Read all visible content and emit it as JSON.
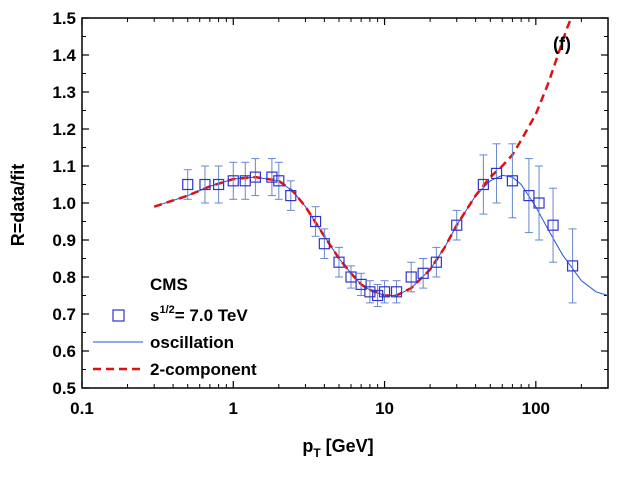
{
  "chart_data": {
    "type": "scatter",
    "panel_label": "(f)",
    "xlabel": "p",
    "xlabel_sub": "T",
    "xlabel_unit": " [GeV]",
    "ylabel": "R=data/fit",
    "xscale": "log",
    "xlim": [
      0.1,
      300
    ],
    "ylim": [
      0.5,
      1.5
    ],
    "x_ticks": [
      0.1,
      1,
      10,
      100
    ],
    "x_tick_labels": [
      "0.1",
      "1",
      "10",
      "100"
    ],
    "y_ticks": [
      0.5,
      0.6,
      0.7,
      0.8,
      0.9,
      1.0,
      1.1,
      1.2,
      1.3,
      1.4,
      1.5
    ],
    "y_tick_labels": [
      "0.5",
      "0.6",
      "0.7",
      "0.8",
      "0.9",
      "1.0",
      "1.1",
      "1.2",
      "1.3",
      "1.4",
      "1.5"
    ],
    "legend": {
      "title": "CMS",
      "data_label_prefix": "s",
      "data_label_sup": "1/2",
      "data_label_suffix": "= 7.0 TeV",
      "oscillation_label": "oscillation",
      "two_component_label": "2-component",
      "position": "bottom-left"
    },
    "colors": {
      "data": "#3333cc",
      "oscillation": "#2255dd",
      "two_component": "#dd1111",
      "error": "#6688cc"
    },
    "series": [
      {
        "name": "s^1/2 = 7.0 TeV",
        "kind": "points",
        "x": [
          0.5,
          0.65,
          0.8,
          1.0,
          1.2,
          1.4,
          1.8,
          2.0,
          2.4,
          3.5,
          4.0,
          5.0,
          6.0,
          7.0,
          8.0,
          9.0,
          10.0,
          12.0,
          15.0,
          18.0,
          22.0,
          30.0,
          45.0,
          55.0,
          70.0,
          90.0,
          105.0,
          130.0,
          175.0
        ],
        "y": [
          1.05,
          1.05,
          1.05,
          1.06,
          1.06,
          1.07,
          1.07,
          1.06,
          1.02,
          0.95,
          0.89,
          0.84,
          0.8,
          0.78,
          0.76,
          0.75,
          0.76,
          0.76,
          0.8,
          0.81,
          0.84,
          0.94,
          1.05,
          1.08,
          1.06,
          1.02,
          1.0,
          0.94,
          0.83
        ],
        "err": [
          0.04,
          0.05,
          0.05,
          0.05,
          0.05,
          0.05,
          0.05,
          0.05,
          0.04,
          0.04,
          0.04,
          0.04,
          0.03,
          0.03,
          0.03,
          0.03,
          0.03,
          0.03,
          0.04,
          0.04,
          0.04,
          0.04,
          0.08,
          0.08,
          0.1,
          0.1,
          0.1,
          0.1,
          0.1
        ]
      },
      {
        "name": "oscillation",
        "kind": "line",
        "x": [
          0.3,
          0.5,
          0.7,
          1.0,
          1.4,
          2.0,
          2.5,
          3.0,
          4.0,
          5.0,
          6.0,
          7.0,
          8.0,
          10.0,
          12.0,
          15.0,
          20.0,
          25.0,
          30.0,
          40.0,
          50.0,
          60.0,
          70.0,
          80.0,
          100.0,
          120.0,
          150.0,
          200.0,
          250.0,
          300.0
        ],
        "y": [
          0.99,
          1.02,
          1.045,
          1.065,
          1.07,
          1.06,
          1.03,
          0.99,
          0.91,
          0.85,
          0.81,
          0.78,
          0.765,
          0.75,
          0.75,
          0.77,
          0.82,
          0.88,
          0.94,
          1.02,
          1.06,
          1.075,
          1.07,
          1.05,
          0.99,
          0.93,
          0.86,
          0.79,
          0.76,
          0.75
        ]
      },
      {
        "name": "2-component",
        "kind": "dashed",
        "x": [
          0.3,
          0.5,
          0.7,
          1.0,
          1.4,
          2.0,
          2.5,
          3.0,
          4.0,
          5.0,
          6.0,
          7.0,
          8.0,
          10.0,
          12.0,
          15.0,
          20.0,
          25.0,
          30.0,
          40.0,
          50.0,
          60.0,
          70.0,
          80.0,
          100.0,
          120.0,
          140.0,
          160.0,
          175.0
        ],
        "y": [
          0.99,
          1.02,
          1.045,
          1.065,
          1.07,
          1.06,
          1.03,
          0.99,
          0.91,
          0.85,
          0.81,
          0.78,
          0.765,
          0.75,
          0.75,
          0.77,
          0.82,
          0.88,
          0.94,
          1.02,
          1.07,
          1.1,
          1.13,
          1.17,
          1.24,
          1.32,
          1.4,
          1.47,
          1.51
        ]
      }
    ]
  }
}
